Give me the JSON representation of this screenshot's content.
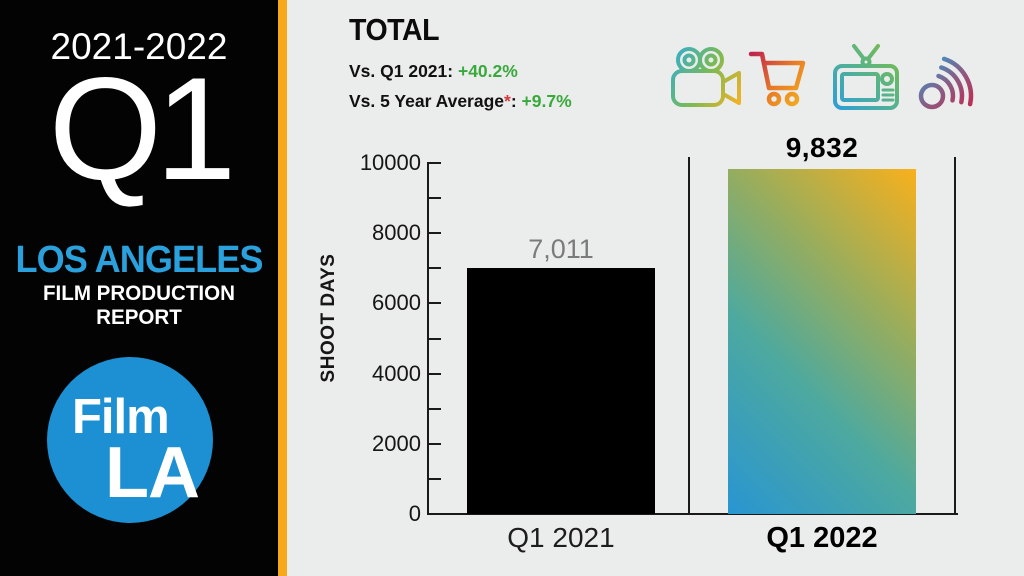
{
  "sidebar": {
    "year_range": "2021-2022",
    "quarter": "Q1",
    "region": "LOS ANGELES",
    "report_title": "FILM PRODUCTION REPORT",
    "logo": {
      "line1": "Film",
      "line2": "LA"
    }
  },
  "header": {
    "title": "TOTAL",
    "stats": [
      {
        "label": "Vs. Q1 2021:",
        "value": "+40.2%"
      },
      {
        "label": "Vs. 5 Year Average",
        "asterisk": "*",
        "separator": ":",
        "value": "+9.7%"
      }
    ]
  },
  "icons": [
    {
      "name": "movie-camera"
    },
    {
      "name": "shopping-cart"
    },
    {
      "name": "television"
    },
    {
      "name": "streaming-signal"
    }
  ],
  "chart_data": {
    "type": "bar",
    "title": "TOTAL",
    "xlabel": "",
    "ylabel": "SHOOT DAYS",
    "categories": [
      "Q1 2021",
      "Q1 2022"
    ],
    "values": [
      7011,
      9832
    ],
    "value_labels": [
      "7,011",
      "9,832"
    ],
    "ylim": [
      0,
      10000
    ],
    "y_axis": {
      "min": 0,
      "max": 10000,
      "minor_step": 1000,
      "label_step": 2000,
      "tick_labels": [
        "0",
        "2000",
        "4000",
        "6000",
        "8000",
        "10000"
      ]
    },
    "grid": false,
    "legend": false,
    "annotations": {
      "vs_q1_2021": "+40.2%",
      "vs_5_year_average": "+9.7%"
    }
  },
  "colors": {
    "background": "#EBECEC",
    "sidebar_background": "#030303",
    "accent_strip": "#F7A81B",
    "region_blue": "#2AA0DC",
    "logo_blue": "#1C90D2",
    "positive_green": "#3AA93C",
    "asterisk_red": "#D4393F",
    "bar_2021": "#000000",
    "bar_2022_gradient": [
      "#2995D2",
      "#4DA99F",
      "#97AD5E",
      "#F9B01C"
    ],
    "value_label_gray": "#7B7B7B"
  }
}
